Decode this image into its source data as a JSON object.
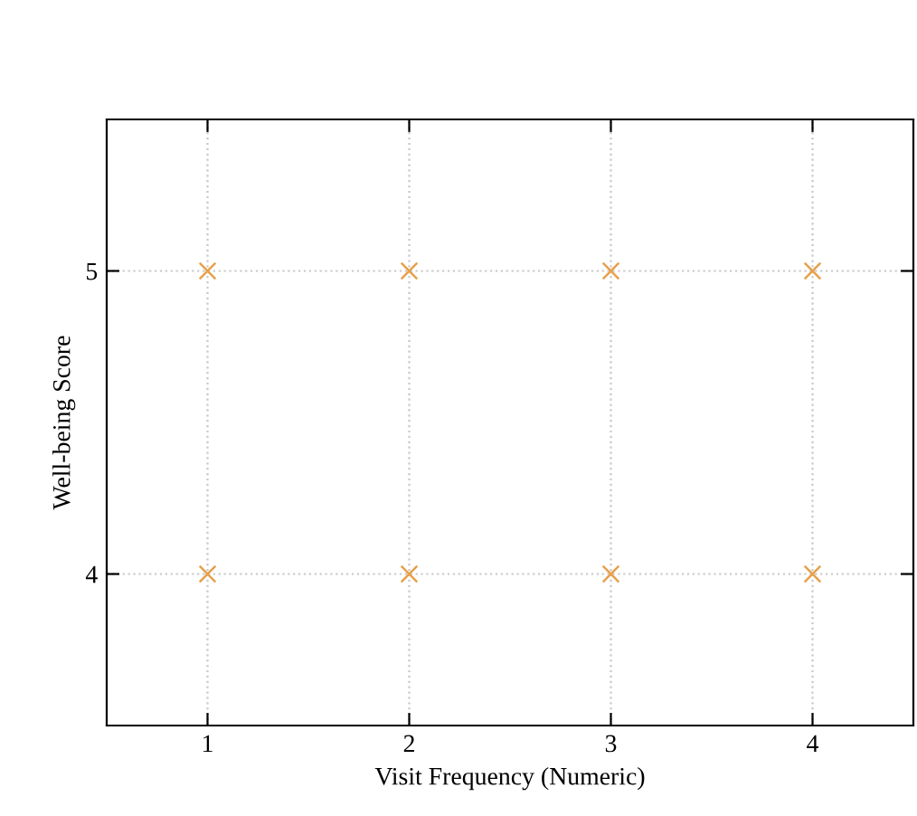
{
  "chart_data": {
    "type": "scatter",
    "xlabel": "Visit Frequency (Numeric)",
    "ylabel": "Well-being Score",
    "series": [
      {
        "color": "#e8a04a",
        "x": [
          1,
          2,
          3,
          4,
          1,
          2,
          3,
          4
        ],
        "values": [
          5,
          5,
          5,
          5,
          4,
          4,
          4,
          4
        ]
      }
    ],
    "xlim": [
      0.5,
      4.5
    ],
    "xticks": [
      1,
      2,
      3,
      4
    ],
    "ylim": [
      3.5,
      5.5
    ],
    "yticks": [
      4,
      5
    ],
    "grid": true,
    "marker": "cross"
  }
}
